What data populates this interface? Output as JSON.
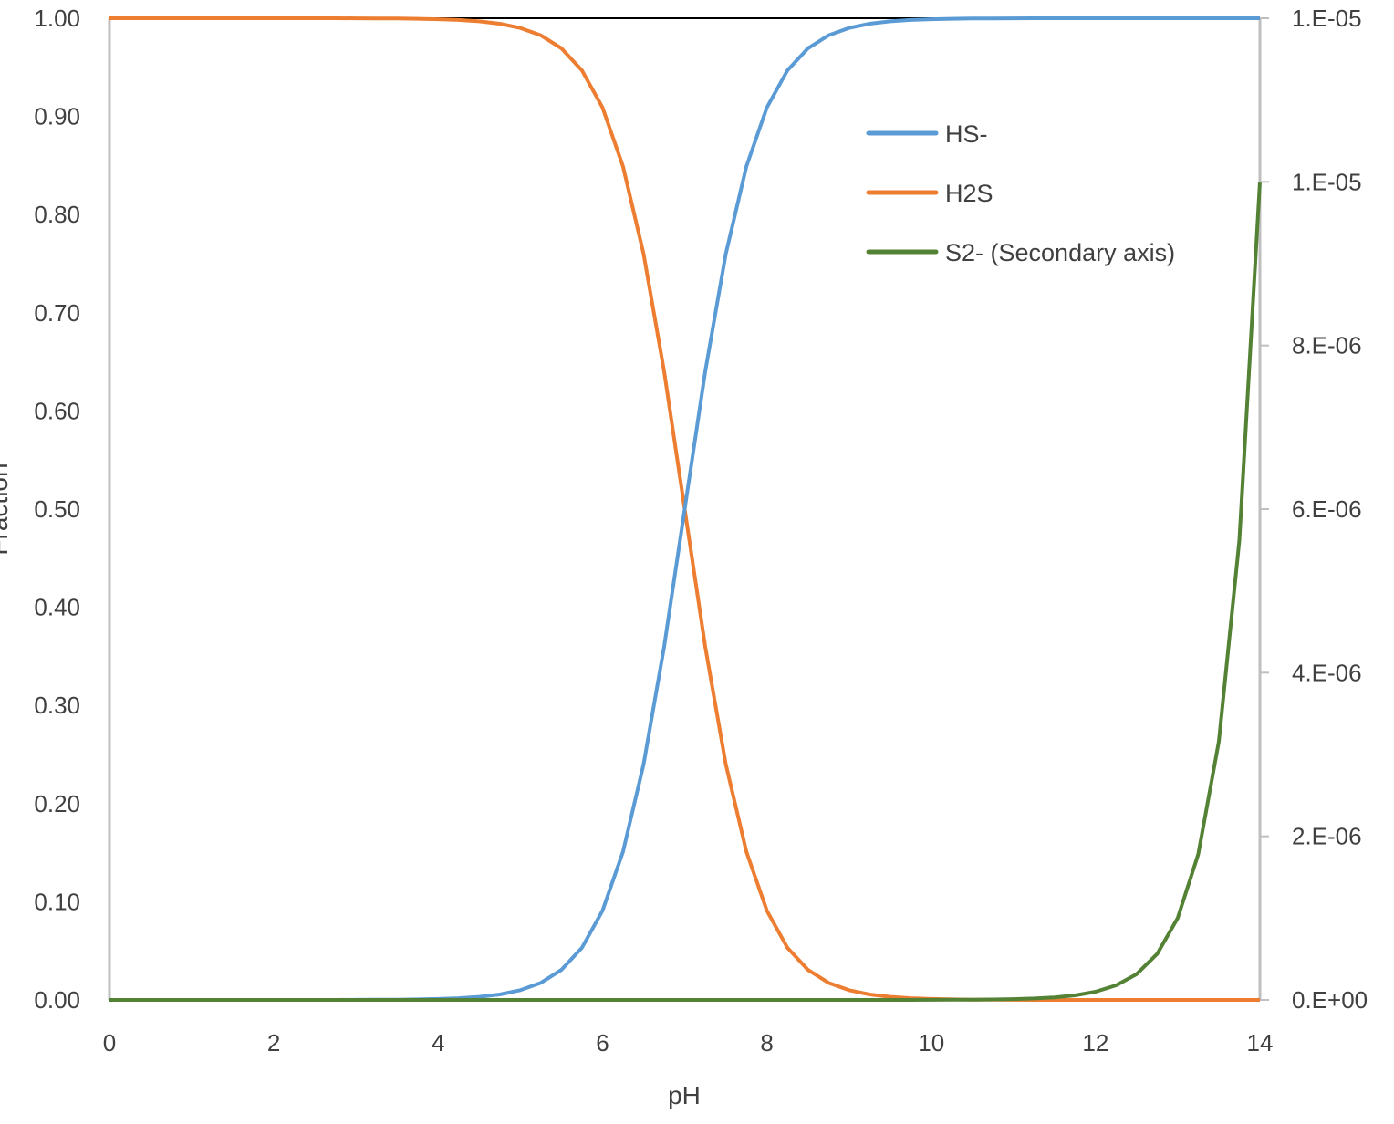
{
  "chart_data": {
    "type": "line",
    "title": "",
    "xlabel": "pH",
    "ylabel": "Fraction",
    "y2label": "",
    "xlim": [
      0,
      14
    ],
    "ylim": [
      0,
      1
    ],
    "y2lim": [
      0,
      1.2e-05
    ],
    "x_ticks": [
      "0",
      "2",
      "4",
      "6",
      "8",
      "10",
      "12",
      "14"
    ],
    "y_ticks": [
      "0.00",
      "0.10",
      "0.20",
      "0.30",
      "0.40",
      "0.50",
      "0.60",
      "0.70",
      "0.80",
      "0.90",
      "1.00"
    ],
    "y2_ticks": [
      "0.E+00",
      "2.E-06",
      "4.E-06",
      "6.E-06",
      "8.E-06",
      "1.E-05",
      "1.E-05"
    ],
    "y2_tick_values": [
      0,
      2e-06,
      4e-06,
      6e-06,
      8e-06,
      1e-05,
      1.2e-05
    ],
    "grid": false,
    "legend_position": "top-right",
    "reference_line": {
      "y": 1,
      "color": "#000000"
    },
    "x": [
      0,
      0.25,
      0.5,
      0.75,
      1,
      1.25,
      1.5,
      1.75,
      2,
      2.25,
      2.5,
      2.75,
      3,
      3.25,
      3.5,
      3.75,
      4,
      4.25,
      4.5,
      4.75,
      5,
      5.25,
      5.5,
      5.75,
      6,
      6.25,
      6.5,
      6.75,
      7,
      7.25,
      7.5,
      7.75,
      8,
      8.25,
      8.5,
      8.75,
      9,
      9.25,
      9.5,
      9.75,
      10,
      10.25,
      10.5,
      10.75,
      11,
      11.25,
      11.5,
      11.75,
      12,
      12.25,
      12.5,
      12.75,
      13,
      13.25,
      13.5,
      13.75,
      14
    ],
    "series": [
      {
        "name": "HS-",
        "axis": "primary",
        "color": "#5B9BD5",
        "values": [
          0,
          0,
          0,
          0,
          0,
          0,
          0,
          0,
          0,
          0,
          0,
          0,
          0.0001,
          0.0002,
          0.0003,
          0.0006,
          0.001,
          0.0018,
          0.0032,
          0.0056,
          0.0099,
          0.0175,
          0.0307,
          0.0532,
          0.0909,
          0.151,
          0.2403,
          0.3599,
          0.5,
          0.6401,
          0.7597,
          0.849,
          0.9091,
          0.9468,
          0.9693,
          0.9825,
          0.9901,
          0.9944,
          0.9968,
          0.9982,
          0.999,
          0.9994,
          0.9997,
          0.9998,
          0.9999,
          1,
          1,
          1,
          1,
          1,
          1,
          1,
          1,
          1,
          1,
          1,
          1
        ]
      },
      {
        "name": "H2S",
        "axis": "primary",
        "color": "#ED7D31",
        "values": [
          1,
          1,
          1,
          1,
          1,
          1,
          1,
          1,
          1,
          1,
          1,
          1,
          0.9999,
          0.9998,
          0.9997,
          0.9994,
          0.999,
          0.9982,
          0.9968,
          0.9944,
          0.9901,
          0.9825,
          0.9693,
          0.9468,
          0.9091,
          0.849,
          0.7597,
          0.6401,
          0.5,
          0.3599,
          0.2403,
          0.151,
          0.0909,
          0.0532,
          0.0307,
          0.0175,
          0.0099,
          0.0056,
          0.0032,
          0.0018,
          0.001,
          0.0006,
          0.0003,
          0.0002,
          0.0001,
          0,
          0,
          0,
          0,
          0,
          0,
          0,
          0,
          0,
          0,
          0,
          0
        ]
      },
      {
        "name": "S2- (Secondary axis)",
        "axis": "secondary",
        "color": "#548235",
        "values": [
          0,
          0,
          0,
          0,
          0,
          0,
          0,
          0,
          0,
          0,
          0,
          0,
          0,
          0,
          0,
          0,
          0,
          0,
          0,
          0,
          0,
          0,
          0,
          0,
          0,
          0,
          0,
          0,
          0,
          0,
          0,
          0,
          0,
          0,
          0,
          0,
          0,
          0,
          0,
          0,
          1e-09,
          1.8e-09,
          3.2e-09,
          5.6e-09,
          1e-08,
          1.78e-08,
          3.16e-08,
          5.62e-08,
          1e-07,
          1.78e-07,
          3.16e-07,
          5.62e-07,
          1e-06,
          1.78e-06,
          3.16e-06,
          5.62e-06,
          1e-05
        ]
      }
    ]
  }
}
